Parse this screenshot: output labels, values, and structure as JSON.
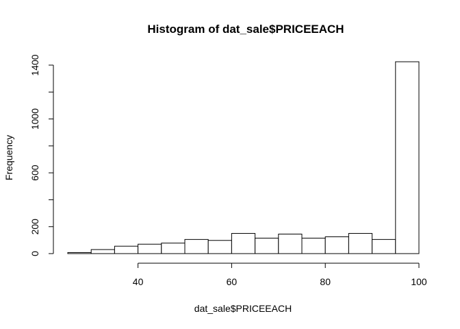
{
  "chart_data": {
    "type": "bar",
    "title": "Histogram of dat_sale$PRICEEACH",
    "xlabel": "dat_sale$PRICEEACH",
    "ylabel": "Frequency",
    "xlim": [
      25,
      100
    ],
    "ylim": [
      0,
      1400
    ],
    "x_ticks": [
      40,
      60,
      80,
      100
    ],
    "y_ticks": [
      0,
      200,
      600,
      1000,
      1400
    ],
    "y_minor_ticks": [
      400,
      800,
      1200
    ],
    "bins": [
      {
        "start": 25,
        "end": 30,
        "value": 8
      },
      {
        "start": 30,
        "end": 35,
        "value": 30
      },
      {
        "start": 35,
        "end": 40,
        "value": 55
      },
      {
        "start": 40,
        "end": 45,
        "value": 70
      },
      {
        "start": 45,
        "end": 50,
        "value": 78
      },
      {
        "start": 50,
        "end": 55,
        "value": 105
      },
      {
        "start": 55,
        "end": 60,
        "value": 98
      },
      {
        "start": 60,
        "end": 65,
        "value": 150
      },
      {
        "start": 65,
        "end": 70,
        "value": 115
      },
      {
        "start": 70,
        "end": 75,
        "value": 145
      },
      {
        "start": 75,
        "end": 80,
        "value": 115
      },
      {
        "start": 80,
        "end": 85,
        "value": 125
      },
      {
        "start": 85,
        "end": 90,
        "value": 150
      },
      {
        "start": 90,
        "end": 95,
        "value": 105
      },
      {
        "start": 95,
        "end": 100,
        "value": 1425
      }
    ],
    "grid": false,
    "legend": "none"
  }
}
